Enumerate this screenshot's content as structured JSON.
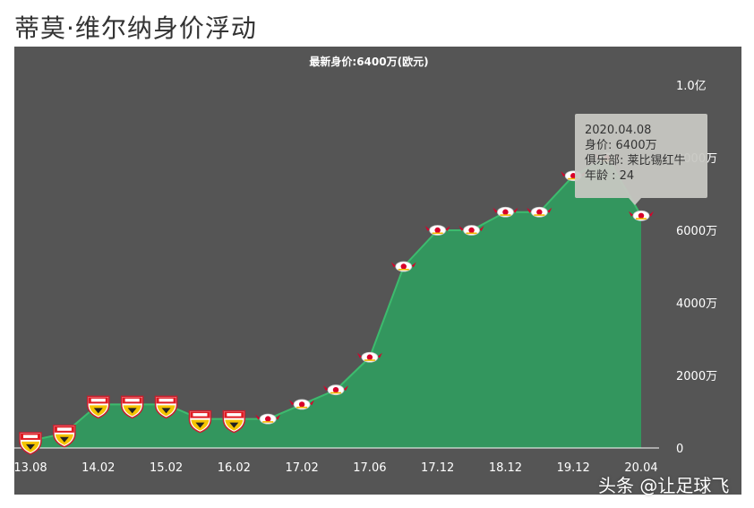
{
  "page": {
    "title": "蒂莫·维尔纳身价浮动",
    "watermark": "头条 @让足球飞"
  },
  "colors": {
    "panel_bg": "#555555",
    "area_fill": "#33965e",
    "area_line": "#3dbb6e",
    "tooltip_bg": "#c8c8c2"
  },
  "chart_data": {
    "type": "area",
    "title": "",
    "subtitle": "最新身价:6400万(欧元)",
    "xlabel": "",
    "ylabel": "",
    "x_tick_labels": [
      "13.08",
      "14.02",
      "15.02",
      "16.02",
      "17.02",
      "17.06",
      "17.12",
      "18.12",
      "19.12",
      "20.04"
    ],
    "y_tick_labels": [
      "0",
      "2000万",
      "4000万",
      "6000万",
      "8000万",
      "1.0亿"
    ],
    "y_ticks": [
      0,
      2000,
      4000,
      6000,
      8000,
      10000
    ],
    "ylim": [
      0,
      10000
    ],
    "y_unit": "万欧元",
    "grid": false,
    "legend": "none",
    "series": [
      {
        "values": [
          {
            "club": "斯图加特",
            "value": 200
          },
          {
            "club": "斯图加特",
            "value": 400
          },
          {
            "club": "斯图加特",
            "value": 1200
          },
          {
            "club": "斯图加特",
            "value": 1200
          },
          {
            "club": "斯图加特",
            "value": 1200
          },
          {
            "club": "斯图加特",
            "value": 800
          },
          {
            "club": "斯图加特",
            "value": 800
          },
          {
            "club": "莱比锡红牛",
            "value": 800
          },
          {
            "club": "莱比锡红牛",
            "value": 1200
          },
          {
            "club": "莱比锡红牛",
            "value": 1600
          },
          {
            "club": "莱比锡红牛",
            "value": 2500
          },
          {
            "club": "莱比锡红牛",
            "value": 5000
          },
          {
            "club": "莱比锡红牛",
            "value": 6000
          },
          {
            "club": "莱比锡红牛",
            "value": 6000
          },
          {
            "club": "莱比锡红牛",
            "value": 6500
          },
          {
            "club": "莱比锡红牛",
            "value": 6500
          },
          {
            "club": "莱比锡红牛",
            "value": 7500
          },
          {
            "club": "莱比锡红牛",
            "value": 8000
          },
          {
            "club": "莱比锡红牛",
            "value": 6400
          }
        ]
      }
    ],
    "tooltip": {
      "date": "2020.04.08",
      "value_line": "身价: 6400万",
      "club_line": "俱乐部: 莱比锡红牛",
      "age_line": "年龄 : 24"
    }
  }
}
